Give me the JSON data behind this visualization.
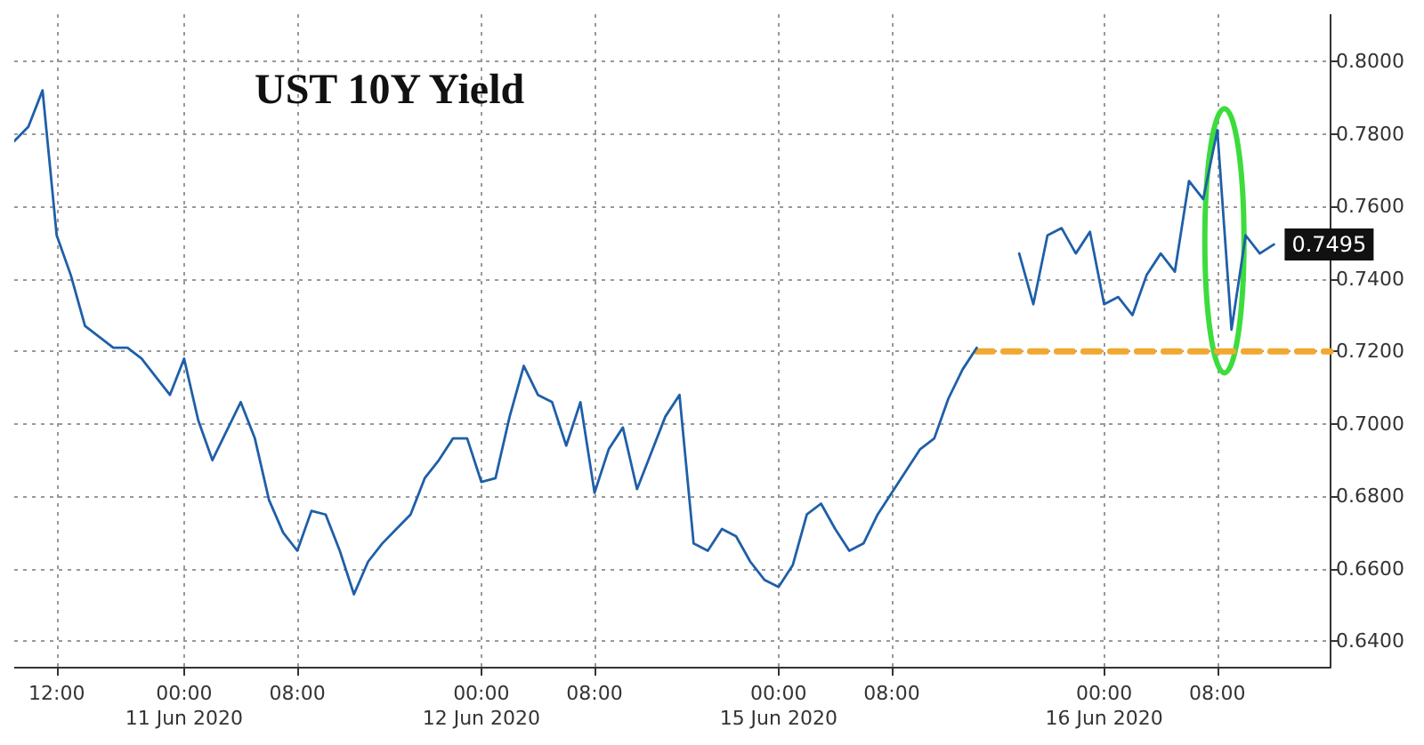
{
  "chart_data": {
    "type": "line",
    "title": "UST 10Y Yield",
    "categories": [
      null,
      null,
      null,
      "12:00",
      null,
      null,
      null,
      null,
      null,
      null,
      null,
      null,
      "00:00\n11 Jun 2020",
      null,
      null,
      null,
      null,
      null,
      null,
      null,
      "08:00",
      null,
      null,
      null,
      null,
      null,
      null,
      null,
      null,
      null,
      null,
      null,
      null,
      "00:00\n12 Jun 2020",
      null,
      null,
      null,
      null,
      null,
      null,
      null,
      "08:00",
      null,
      null,
      null,
      null,
      null,
      null,
      null,
      null,
      null,
      null,
      null,
      null,
      "00:00\n15 Jun 2020",
      null,
      null,
      null,
      null,
      null,
      null,
      null,
      "08:00",
      null,
      null,
      null,
      null,
      null,
      null,
      null,
      null,
      null,
      null,
      null,
      null,
      null,
      null,
      "00:00\n16 Jun 2020",
      null,
      null,
      null,
      null,
      null,
      null,
      null,
      "08:00",
      null,
      null,
      null,
      null,
      null,
      null,
      null,
      null
    ],
    "series": [
      {
        "color": "#1f5fa8",
        "values": [
          0.778,
          0.782,
          0.792,
          0.752,
          0.741,
          0.727,
          0.724,
          0.721,
          0.721,
          0.718,
          0.713,
          0.708,
          0.718,
          0.701,
          0.69,
          0.698,
          0.706,
          0.696,
          0.679,
          0.67,
          0.665,
          0.676,
          0.675,
          0.665,
          0.653,
          0.662,
          0.667,
          0.671,
          0.675,
          0.685,
          0.69,
          0.696,
          0.696,
          0.684,
          0.685,
          0.702,
          0.716,
          0.708,
          0.706,
          0.694,
          0.706,
          0.681,
          0.693,
          0.699,
          0.682,
          0.692,
          0.702,
          0.708,
          0.667,
          0.665,
          0.671,
          0.669,
          0.662,
          0.657,
          0.655,
          0.661,
          0.675,
          0.678,
          0.671,
          0.665,
          0.667,
          0.675,
          0.681,
          0.687,
          0.693,
          0.696,
          0.707,
          0.715,
          0.721,
          null,
          null,
          0.747,
          0.733,
          0.752,
          0.754,
          0.747,
          0.753,
          0.733,
          0.735,
          0.73,
          0.741,
          0.747,
          0.742,
          0.767,
          0.762,
          0.781,
          0.726,
          0.752,
          0.747,
          0.7495,
          null,
          null,
          null,
          null
        ],
        "value_labels": [
          null,
          null,
          null,
          null,
          null,
          null,
          null,
          null,
          null,
          null,
          null,
          null,
          null,
          null,
          null,
          null,
          null,
          null,
          null,
          null,
          null,
          null,
          null,
          null,
          null,
          null,
          null,
          null,
          null,
          null,
          null,
          null,
          null,
          null,
          null,
          null,
          null,
          null,
          null,
          null,
          null,
          null,
          null,
          null,
          null,
          null,
          null,
          null,
          null,
          null,
          null,
          null,
          null,
          null,
          null,
          null,
          null,
          null,
          null,
          null,
          null,
          null,
          null,
          null,
          null,
          null,
          null,
          null,
          null,
          null,
          null,
          null,
          null,
          null,
          null,
          null,
          null,
          null,
          null,
          null,
          null,
          null,
          null,
          null,
          null,
          null,
          null,
          null,
          null,
          "0.7495",
          null,
          null,
          null,
          null
        ]
      },
      {
        "type": "line",
        "color": "#f0a830",
        "line_style": "dashed",
        "values": [
          null,
          null,
          null,
          null,
          null,
          null,
          null,
          null,
          null,
          null,
          null,
          null,
          null,
          null,
          null,
          null,
          null,
          null,
          null,
          null,
          null,
          null,
          null,
          null,
          null,
          null,
          null,
          null,
          null,
          null,
          null,
          null,
          null,
          null,
          null,
          null,
          null,
          null,
          null,
          null,
          null,
          null,
          null,
          null,
          null,
          null,
          null,
          null,
          null,
          null,
          null,
          null,
          null,
          null,
          null,
          null,
          null,
          null,
          null,
          null,
          null,
          null,
          null,
          null,
          null,
          null,
          null,
          null,
          0.72,
          0.72,
          0.72,
          0.72,
          0.72,
          0.72,
          0.72,
          0.72,
          0.72,
          0.72,
          0.72,
          0.72,
          0.72,
          0.72,
          0.72,
          0.72,
          0.72,
          0.72,
          0.72,
          0.72,
          0.72,
          0.72,
          0.72,
          0.72,
          0.72,
          0.72
        ]
      }
    ],
    "ylim": [
      0.633,
      0.813
    ],
    "yticks": [
      {
        "value": 0.64,
        "label": "0.6400"
      },
      {
        "value": 0.66,
        "label": "0.6600"
      },
      {
        "value": 0.68,
        "label": "0.6800"
      },
      {
        "value": 0.7,
        "label": "0.7000"
      },
      {
        "value": 0.72,
        "label": "0.7200"
      },
      {
        "value": 0.74,
        "label": "0.7400"
      },
      {
        "value": 0.76,
        "label": "0.7600"
      },
      {
        "value": 0.78,
        "label": "0.7800"
      },
      {
        "value": 0.8,
        "label": "0.8000"
      }
    ],
    "grid": true,
    "marker": "none"
  }
}
